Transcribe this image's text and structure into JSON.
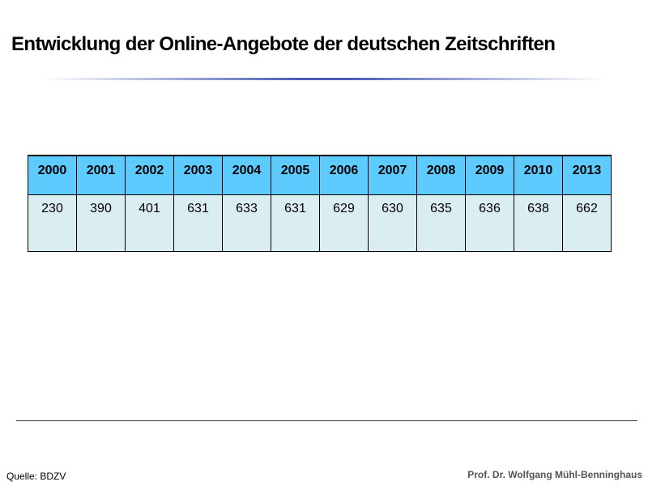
{
  "title": "Entwicklung der Online-Angebote der deutschen Zeitschriften",
  "table": {
    "years": [
      "2000",
      "2001",
      "2002",
      "2003",
      "2004",
      "2005",
      "2006",
      "2007",
      "2008",
      "2009",
      "2010",
      "2013"
    ],
    "values": [
      "230",
      "390",
      "401",
      "631",
      "633",
      "631",
      "629",
      "630",
      "635",
      "636",
      "638",
      "662"
    ]
  },
  "footer": {
    "source": "Quelle: BDZV",
    "author": "Prof. Dr. Wolfgang Mühl-Benninghaus"
  },
  "colors": {
    "header_bg": "#5ecbff",
    "body_bg": "#daedf0",
    "title_rule": "#4a5fb5"
  }
}
